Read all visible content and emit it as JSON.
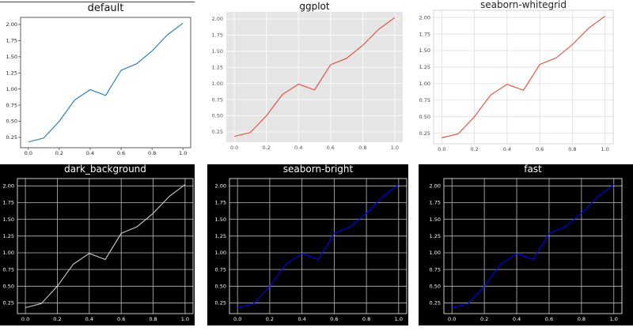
{
  "chart_data": [
    {
      "type": "line",
      "title": "default",
      "style": "default",
      "x": [
        0.0,
        0.1,
        0.2,
        0.3,
        0.4,
        0.5,
        0.6,
        0.7,
        0.8,
        0.9,
        1.0
      ],
      "series": [
        {
          "values": [
            0.18,
            0.24,
            0.5,
            0.83,
            0.99,
            0.9,
            1.29,
            1.39,
            1.59,
            1.84,
            2.02
          ]
        }
      ],
      "x_ticks": [
        "0.0",
        "0.2",
        "0.4",
        "0.6",
        "0.8",
        "1.0"
      ],
      "y_ticks": [
        "0.25",
        "0.50",
        "0.75",
        "1.00",
        "1.25",
        "1.50",
        "1.75",
        "2.00"
      ],
      "xlim": [
        -0.05,
        1.05
      ],
      "ylim": [
        0.09,
        2.11
      ],
      "grid": false,
      "colors": {
        "background": "#ffffff",
        "plot_background": "#ffffff",
        "axes": "#333333",
        "text": "#222222",
        "title": "#111111",
        "line": "#1f77b4",
        "grid": "none"
      }
    },
    {
      "type": "line",
      "title": "ggplot",
      "style": "ggplot",
      "x": [
        0.0,
        0.1,
        0.2,
        0.3,
        0.4,
        0.5,
        0.6,
        0.7,
        0.8,
        0.9,
        1.0
      ],
      "series": [
        {
          "values": [
            0.18,
            0.24,
            0.5,
            0.83,
            0.99,
            0.9,
            1.29,
            1.39,
            1.59,
            1.84,
            2.02
          ]
        }
      ],
      "x_ticks": [
        "0.0",
        "0.2",
        "0.4",
        "0.6",
        "0.8",
        "1.0"
      ],
      "y_ticks": [
        "0.25",
        "0.50",
        "0.75",
        "1.00",
        "1.25",
        "1.50",
        "1.75",
        "2.00"
      ],
      "xlim": [
        -0.05,
        1.05
      ],
      "ylim": [
        0.09,
        2.11
      ],
      "grid": true,
      "colors": {
        "background": "#ffffff",
        "plot_background": "#e5e5e5",
        "axes": "none",
        "text": "#555555",
        "title": "#111111",
        "line": "#e24a33",
        "grid": "#ffffff"
      }
    },
    {
      "type": "line",
      "title": "seaborn-whitegrid",
      "style": "seaborn-whitegrid",
      "x": [
        0.0,
        0.1,
        0.2,
        0.3,
        0.4,
        0.5,
        0.6,
        0.7,
        0.8,
        0.9,
        1.0
      ],
      "series": [
        {
          "values": [
            0.18,
            0.24,
            0.5,
            0.83,
            0.99,
            0.9,
            1.29,
            1.39,
            1.59,
            1.84,
            2.02
          ]
        }
      ],
      "x_ticks": [
        "0.0",
        "0.2",
        "0.4",
        "0.6",
        "0.8",
        "1.0"
      ],
      "y_ticks": [
        "0.25",
        "0.50",
        "0.75",
        "1.00",
        "1.25",
        "1.50",
        "1.75",
        "2.00"
      ],
      "xlim": [
        -0.05,
        1.05
      ],
      "ylim": [
        0.09,
        2.11
      ],
      "grid": true,
      "colors": {
        "background": "#ffffff",
        "plot_background": "#ffffff",
        "axes": "#cccccc",
        "text": "#444444",
        "title": "#222222",
        "line": "#e24a33",
        "grid": "#dddddd"
      }
    },
    {
      "type": "line",
      "title": "dark_background",
      "style": "dark_background",
      "x": [
        0.0,
        0.1,
        0.2,
        0.3,
        0.4,
        0.5,
        0.6,
        0.7,
        0.8,
        0.9,
        1.0
      ],
      "series": [
        {
          "values": [
            0.18,
            0.24,
            0.5,
            0.83,
            0.99,
            0.9,
            1.29,
            1.39,
            1.59,
            1.84,
            2.02
          ]
        }
      ],
      "x_ticks": [
        "0.0",
        "0.2",
        "0.4",
        "0.6",
        "0.8",
        "1.0"
      ],
      "y_ticks": [
        "0.25",
        "0.50",
        "0.75",
        "1.00",
        "1.25",
        "1.50",
        "1.75",
        "2.00"
      ],
      "xlim": [
        -0.05,
        1.05
      ],
      "ylim": [
        0.09,
        2.11
      ],
      "grid": true,
      "colors": {
        "background": "#000000",
        "plot_background": "#000000",
        "axes": "#ffffff",
        "text": "#ffffff",
        "title": "#ffffff",
        "line": "#cccccc",
        "grid": "#bbbbbb"
      }
    },
    {
      "type": "line",
      "title": "seaborn-bright",
      "style": "seaborn-bright",
      "x": [
        0.0,
        0.1,
        0.2,
        0.3,
        0.4,
        0.5,
        0.6,
        0.7,
        0.8,
        0.9,
        1.0
      ],
      "series": [
        {
          "values": [
            0.18,
            0.24,
            0.5,
            0.83,
            0.99,
            0.9,
            1.29,
            1.39,
            1.59,
            1.84,
            2.02
          ]
        }
      ],
      "x_ticks": [
        "0.0",
        "0.2",
        "0.4",
        "0.6",
        "0.8",
        "1.0"
      ],
      "y_ticks": [
        "0.25",
        "0.50",
        "0.75",
        "1.00",
        "1.25",
        "1.50",
        "1.75",
        "2.00"
      ],
      "xlim": [
        -0.05,
        1.05
      ],
      "ylim": [
        0.09,
        2.11
      ],
      "grid": true,
      "colors": {
        "background": "#000000",
        "plot_background": "#000000",
        "axes": "#ffffff",
        "text": "#ffffff",
        "title": "#ffffff",
        "line": "#0000ff",
        "grid": "#bbbbbb"
      }
    },
    {
      "type": "line",
      "title": "fast",
      "style": "fast",
      "x": [
        0.0,
        0.1,
        0.2,
        0.3,
        0.4,
        0.5,
        0.6,
        0.7,
        0.8,
        0.9,
        1.0
      ],
      "series": [
        {
          "values": [
            0.18,
            0.24,
            0.5,
            0.83,
            0.99,
            0.9,
            1.29,
            1.39,
            1.59,
            1.84,
            2.02
          ]
        }
      ],
      "x_ticks": [
        "0.0",
        "0.2",
        "0.4",
        "0.6",
        "0.8",
        "1.0"
      ],
      "y_ticks": [
        "0.25",
        "0.50",
        "0.75",
        "1.00",
        "1.25",
        "1.50",
        "1.75",
        "2.00"
      ],
      "xlim": [
        -0.05,
        1.05
      ],
      "ylim": [
        0.09,
        2.11
      ],
      "grid": true,
      "colors": {
        "background": "#000000",
        "plot_background": "#000000",
        "axes": "#ffffff",
        "text": "#ffffff",
        "title": "#ffffff",
        "line": "#0000ff",
        "grid": "#bbbbbb"
      }
    }
  ]
}
